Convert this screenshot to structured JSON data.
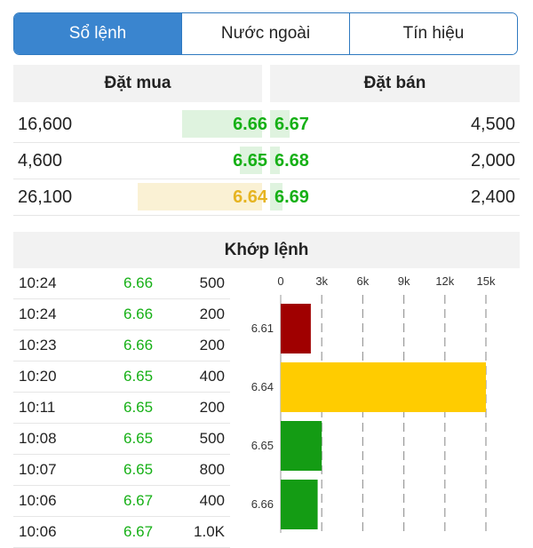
{
  "tabs": [
    {
      "label": "Sổ lệnh",
      "active": true
    },
    {
      "label": "Nước ngoài",
      "active": false
    },
    {
      "label": "Tín hiệu",
      "active": false
    }
  ],
  "order_book": {
    "buy_header": "Đặt mua",
    "sell_header": "Đặt bán",
    "rows": [
      {
        "buy_volume": "16,600",
        "buy_price": "6.66",
        "buy_color": "#16b016",
        "buy_bar_color": "#dff3df",
        "buy_bar_fraction": 0.32,
        "sell_price": "6.67",
        "sell_color": "#16b016",
        "sell_bar_fraction": 0.08,
        "sell_volume": "4,500"
      },
      {
        "buy_volume": "4,600",
        "buy_price": "6.65",
        "buy_color": "#16b016",
        "buy_bar_color": "#dff3df",
        "buy_bar_fraction": 0.09,
        "sell_price": "6.68",
        "sell_color": "#16b016",
        "sell_bar_fraction": 0.04,
        "sell_volume": "2,000"
      },
      {
        "buy_volume": "26,100",
        "buy_price": "6.64",
        "buy_color": "#e6b422",
        "buy_bar_color": "#faf1d4",
        "buy_bar_fraction": 0.5,
        "sell_price": "6.69",
        "sell_color": "#16b016",
        "sell_bar_fraction": 0.05,
        "sell_volume": "2,400"
      }
    ]
  },
  "matched": {
    "header": "Khớp lệnh",
    "trades": [
      {
        "time": "10:24",
        "price": "6.66",
        "volume": "500"
      },
      {
        "time": "10:24",
        "price": "6.66",
        "volume": "200"
      },
      {
        "time": "10:23",
        "price": "6.66",
        "volume": "200"
      },
      {
        "time": "10:20",
        "price": "6.65",
        "volume": "400"
      },
      {
        "time": "10:11",
        "price": "6.65",
        "volume": "200"
      },
      {
        "time": "10:08",
        "price": "6.65",
        "volume": "500"
      },
      {
        "time": "10:07",
        "price": "6.65",
        "volume": "800"
      },
      {
        "time": "10:06",
        "price": "6.67",
        "volume": "400"
      },
      {
        "time": "10:06",
        "price": "6.67",
        "volume": "1.0K"
      }
    ],
    "price_color": "#16b016"
  },
  "chart_data": {
    "type": "bar",
    "orientation": "horizontal",
    "categories": [
      "6.61",
      "6.64",
      "6.65",
      "6.66"
    ],
    "values": [
      2200,
      15000,
      3000,
      2700
    ],
    "colors": [
      "#a00000",
      "#ffcc00",
      "#149c14",
      "#149c14"
    ],
    "xlim": [
      0,
      15000
    ],
    "xticks": [
      "0",
      "3k",
      "6k",
      "9k",
      "12k",
      "15k"
    ],
    "xtick_values": [
      0,
      3000,
      6000,
      9000,
      12000,
      15000
    ],
    "grid": "dashed-vertical"
  }
}
